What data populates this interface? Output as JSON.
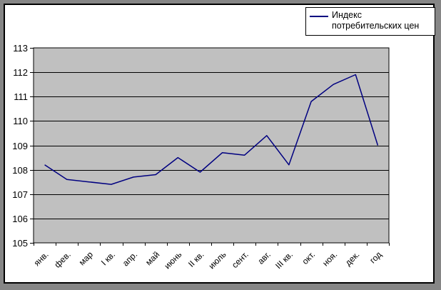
{
  "window": {
    "outer_background": "#868686",
    "chart_background": "#ffffff"
  },
  "legend": {
    "items": [
      {
        "label": "Индекс потребительских цен",
        "color": "#000080"
      }
    ]
  },
  "chart_data": {
    "type": "line",
    "title": "",
    "xlabel": "",
    "ylabel": "",
    "categories": [
      "янв.",
      "фев.",
      "мар",
      "I кв.",
      "апр.",
      "май",
      "июнь",
      "II кв.",
      "июль",
      "сент.",
      "авг.",
      "III кв.",
      "окт.",
      "ноя.",
      "дек.",
      "год"
    ],
    "series": [
      {
        "name": "Индекс потребительских цен",
        "color": "#000080",
        "values": [
          108.2,
          107.6,
          107.5,
          107.4,
          107.7,
          107.8,
          108.5,
          107.9,
          108.7,
          108.6,
          109.4,
          108.2,
          110.8,
          111.5,
          111.9,
          109.0
        ]
      }
    ],
    "ylim": [
      105,
      113
    ],
    "ytick_step": 1,
    "ytick_labels": [
      "105",
      "106",
      "107",
      "108",
      "109",
      "110",
      "111",
      "112",
      "113"
    ],
    "grid": "horizontal",
    "gridline_color": "#000000",
    "plot_area_color": "#c0c0c0",
    "legend_position": "top-right",
    "x_labels_rotation_deg": -45
  }
}
